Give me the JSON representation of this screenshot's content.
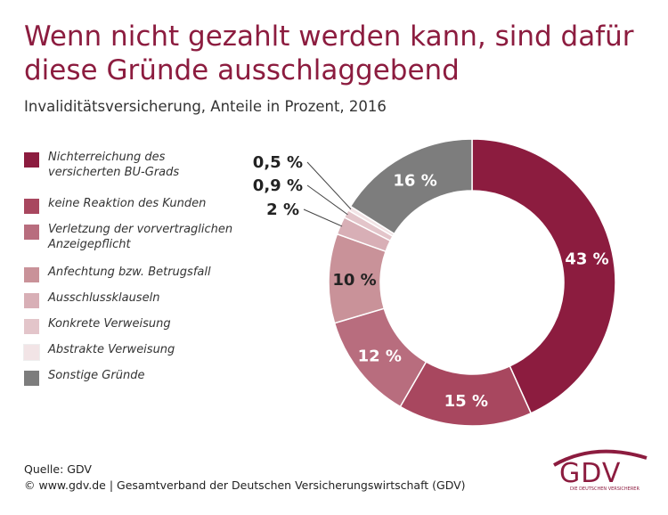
{
  "chart_data": {
    "type": "donut",
    "title": "Wenn nicht gezahlt werden kann, sind dafür diese Gründe ausschlaggebend",
    "subtitle": "Invaliditätsversicherung, Anteile in Prozent, 2016",
    "unit": "%",
    "legend_position": "left",
    "slices": [
      {
        "name": "Nichterreichung des versicherten BU-Grads",
        "value": 43,
        "label": "43 %",
        "color": "#8c1c3f"
      },
      {
        "name": "keine Reaktion des Kunden",
        "value": 15,
        "label": "15 %",
        "color": "#a8475f"
      },
      {
        "name": "Verletzung der vorvertraglichen Anzeigepflicht",
        "value": 12,
        "label": "12 %",
        "color": "#b86d7e"
      },
      {
        "name": "Anfechtung bzw. Betrugsfall",
        "value": 10,
        "label": "10 %",
        "color": "#c99299"
      },
      {
        "name": "Ausschlussklauseln",
        "value": 2,
        "label": "2 %",
        "color": "#d8afb6"
      },
      {
        "name": "Konkrete Verweisung",
        "value": 0.9,
        "label": "0,9 %",
        "color": "#e3c5ca"
      },
      {
        "name": "Abstrakte Verweisung",
        "value": 0.5,
        "label": "0,5 %",
        "color": "#f2e4e6"
      },
      {
        "name": "Sonstige Gründe",
        "value": 16,
        "label": "16 %",
        "color": "#7d7d7d"
      }
    ]
  },
  "footer": {
    "source": "Quelle: GDV",
    "copyright": "© www.gdv.de | Gesamtverband der Deutschen Versicherungswirtschaft (GDV)"
  },
  "logo": {
    "text": "GDV",
    "subtext": "DIE DEUTSCHEN VERSICHERER"
  }
}
